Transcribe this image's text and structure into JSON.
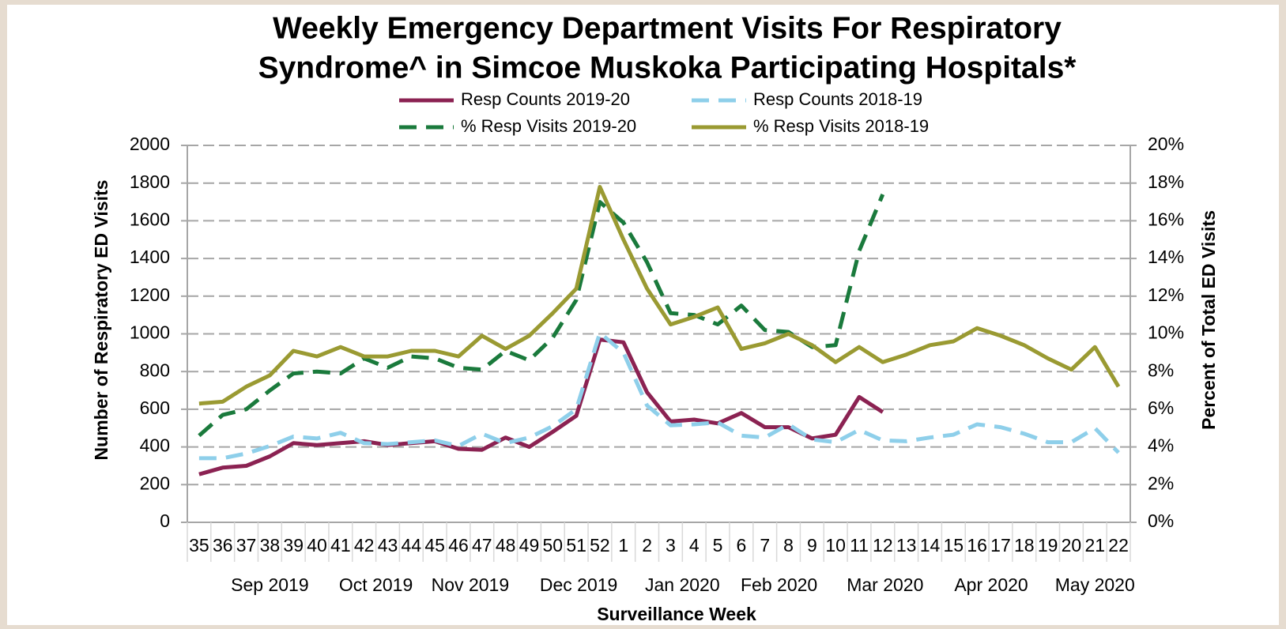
{
  "chart_data": {
    "type": "line",
    "title": [
      "Weekly Emergency Department Visits For Respiratory",
      "Syndrome^ in Simcoe Muskoka Participating Hospitals*"
    ],
    "x_label": "Surveillance Week",
    "y_label": "Number of Respiratory ED Visits",
    "y2_label": "Percent of Total ED Visits",
    "categories": [
      "35",
      "36",
      "37",
      "38",
      "39",
      "40",
      "41",
      "42",
      "43",
      "44",
      "45",
      "46",
      "47",
      "48",
      "49",
      "50",
      "51",
      "52",
      "1",
      "2",
      "3",
      "4",
      "5",
      "6",
      "7",
      "8",
      "9",
      "10",
      "11",
      "12",
      "13",
      "14",
      "15",
      "16",
      "17",
      "18",
      "19",
      "20",
      "21",
      "22"
    ],
    "month_labels": [
      "Sep 2019",
      "Oct 2019",
      "Nov 2019",
      "Dec 2019",
      "Jan 2020",
      "Feb 2020",
      "Mar 2020",
      "Apr 2020",
      "May 2020"
    ],
    "ylim": [
      0,
      2000
    ],
    "yticks": [
      0,
      200,
      400,
      600,
      800,
      1000,
      1200,
      1400,
      1600,
      1800,
      2000
    ],
    "y2lim": [
      0,
      20
    ],
    "y2ticks": [
      {
        "value": 0,
        "label": "0%"
      },
      {
        "value": 2,
        "label": "2%"
      },
      {
        "value": 4,
        "label": "4%"
      },
      {
        "value": 6,
        "label": "6%"
      },
      {
        "value": 8,
        "label": "8%"
      },
      {
        "value": 10,
        "label": "10%"
      },
      {
        "value": 12,
        "label": "12%"
      },
      {
        "value": 14,
        "label": "14%"
      },
      {
        "value": 16,
        "label": "16%"
      },
      {
        "value": 18,
        "label": "18%"
      },
      {
        "value": 20,
        "label": "20%"
      }
    ],
    "grid": true,
    "series": [
      {
        "name": "Resp Counts 2019-20",
        "color": "#8b2252",
        "style": "solid",
        "values": [
          255,
          290,
          300,
          350,
          420,
          410,
          420,
          430,
          410,
          420,
          430,
          390,
          385,
          450,
          400,
          480,
          565,
          970,
          955,
          690,
          535,
          545,
          525,
          580,
          505,
          505,
          445,
          465,
          665,
          585,
          null,
          null,
          null,
          null,
          null,
          null,
          null,
          null,
          null,
          null
        ]
      },
      {
        "name": "Resp Counts 2018-19",
        "color": "#8ecfea",
        "style": "dashed",
        "values": [
          340,
          340,
          365,
          405,
          455,
          445,
          475,
          420,
          415,
          425,
          435,
          405,
          470,
          420,
          450,
          510,
          600,
          1005,
          900,
          620,
          515,
          520,
          530,
          460,
          450,
          520,
          440,
          425,
          490,
          435,
          430,
          450,
          465,
          520,
          505,
          470,
          425,
          425,
          500,
          370
        ]
      },
      {
        "name": "% Resp Visits 2019-20",
        "color": "#1a7a3c",
        "style": "dashed",
        "axis": "y2",
        "values": [
          4.6,
          5.7,
          6.0,
          7.0,
          7.9,
          8.0,
          7.9,
          8.7,
          8.2,
          8.8,
          8.7,
          8.2,
          8.1,
          9.1,
          8.6,
          9.8,
          11.8,
          17.0,
          15.9,
          13.8,
          11.1,
          11.0,
          10.5,
          11.5,
          10.2,
          10.1,
          9.3,
          9.4,
          14.4,
          17.4,
          null,
          null,
          null,
          null,
          null,
          null,
          null,
          null,
          null,
          null
        ]
      },
      {
        "name": "% Resp Visits 2018-19",
        "color": "#9a9a32",
        "style": "solid",
        "axis": "y2",
        "values": [
          6.3,
          6.4,
          7.2,
          7.8,
          9.1,
          8.8,
          9.3,
          8.8,
          8.8,
          9.1,
          9.1,
          8.8,
          9.9,
          9.2,
          9.9,
          11.1,
          12.4,
          17.8,
          15.0,
          12.4,
          10.5,
          10.9,
          11.4,
          9.2,
          9.5,
          10.0,
          9.4,
          8.5,
          9.3,
          8.5,
          8.9,
          9.4,
          9.6,
          10.3,
          9.9,
          9.4,
          8.7,
          8.1,
          9.3,
          7.2
        ]
      }
    ]
  }
}
